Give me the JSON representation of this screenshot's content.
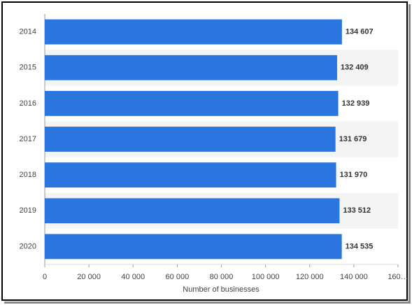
{
  "chart_data": {
    "type": "hbar",
    "categories": [
      "2014",
      "2015",
      "2016",
      "2017",
      "2018",
      "2019",
      "2020"
    ],
    "values": [
      134607,
      132409,
      132939,
      131679,
      131970,
      133512,
      134535
    ],
    "value_labels": [
      "134 607",
      "132 409",
      "132 939",
      "131 679",
      "131 970",
      "133 512",
      "134 535"
    ],
    "color": "#2a75de",
    "xlabel": "Number of businesses",
    "xlim": [
      0,
      160000
    ],
    "xticks": [
      0,
      {
        "value": 20000,
        "label": "20 000"
      },
      {
        "value": 40000,
        "label": "40 000"
      },
      {
        "value": 60000,
        "label": "60 000"
      },
      {
        "value": 80000,
        "label": "80 000"
      },
      {
        "value": 100000,
        "label": "100 000"
      },
      {
        "value": 120000,
        "label": "120 000"
      },
      {
        "value": 140000,
        "label": "140 000"
      },
      {
        "value": 160000,
        "label": "160…"
      }
    ],
    "striped_rows": true
  }
}
